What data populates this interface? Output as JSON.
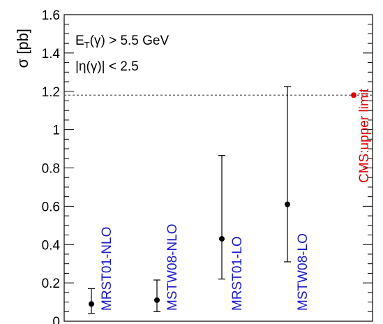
{
  "chart_data": {
    "type": "scatter",
    "title": "",
    "xlabel": "",
    "ylabel": "σ [pb]",
    "ylim": [
      0,
      1.6
    ],
    "yticks": [
      "0",
      "0.2",
      "0.4",
      "0.6",
      "0.8",
      "1",
      "1.2",
      "1.4",
      "1.6"
    ],
    "grid": false,
    "annotations": {
      "line1_main": "E",
      "line1_sub": "T",
      "line1_rest": "(γ) > 5.5 GeV",
      "line2": "|η(γ)| < 2.5"
    },
    "points": [
      {
        "label": "MRST01-NLO",
        "x": 1,
        "y": 0.09,
        "err_low": 0.04,
        "err_high": 0.17,
        "color": "#000000",
        "label_color": "#1a1acc"
      },
      {
        "label": "MSTW08-NLO",
        "x": 2,
        "y": 0.11,
        "err_low": 0.05,
        "err_high": 0.215,
        "color": "#000000",
        "label_color": "#1a1acc"
      },
      {
        "label": "MRST01-LO",
        "x": 3,
        "y": 0.43,
        "err_low": 0.22,
        "err_high": 0.865,
        "color": "#000000",
        "label_color": "#1a1acc"
      },
      {
        "label": "MSTW08-LO",
        "x": 4,
        "y": 0.61,
        "err_low": 0.31,
        "err_high": 1.225,
        "color": "#000000",
        "label_color": "#1a1acc"
      }
    ],
    "upper_limit": {
      "label": "CMS:upper limit",
      "x": 5,
      "y": 1.18,
      "color": "#e00000"
    }
  }
}
